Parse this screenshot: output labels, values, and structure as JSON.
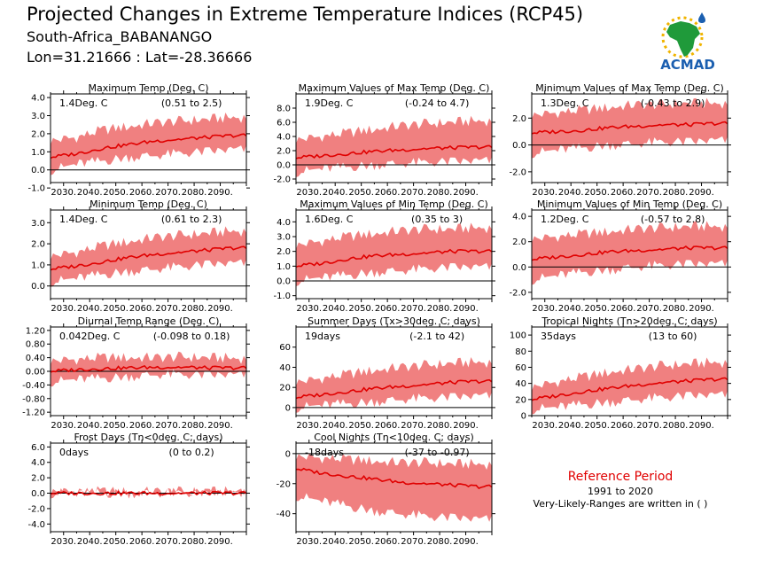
{
  "header": {
    "title": "Projected Changes in Extreme Temperature Indices (RCP45)",
    "location": "South-Africa_BABANANGO",
    "coords": "Lon=31.21666 : Lat=-28.36666"
  },
  "logo": {
    "text": "ACMAD",
    "icon": "africa-map-logo-icon"
  },
  "reference": {
    "title": "Reference Period",
    "years": "1991 to 2020",
    "note": "Very-Likely-Ranges are written in ( )"
  },
  "colors": {
    "band": "#f08080",
    "median": "#e00000",
    "zero_line": "#000000"
  },
  "x_tick_labels": [
    "2030.",
    "2040.",
    "2050.",
    "2060.",
    "2070.",
    "2080.",
    "2090."
  ],
  "chart_data": [
    {
      "type": "area",
      "title": "Maximum Temp (Deg. C)",
      "median_label": "1.4Deg. C",
      "range_label": "(0.51 to 2.5)",
      "x_range": [
        2025,
        2100
      ],
      "ylim": [
        -0.7,
        4.2
      ],
      "yticks": [
        "4.0",
        "3.0",
        "2.0",
        "1.0",
        "0.0",
        "-1.0"
      ],
      "ytick_values": [
        4,
        3,
        2,
        1,
        0,
        -1
      ],
      "series": [
        {
          "x": [
            2025,
            2035,
            2045,
            2055,
            2065,
            2075,
            2085,
            2095,
            2100
          ],
          "median": [
            0.7,
            0.9,
            1.2,
            1.4,
            1.6,
            1.7,
            1.8,
            1.9,
            1.9
          ],
          "low": [
            0.0,
            0.3,
            0.5,
            0.7,
            0.8,
            0.9,
            1.0,
            1.1,
            1.1
          ],
          "high": [
            1.6,
            1.8,
            2.2,
            2.4,
            2.6,
            2.7,
            2.8,
            2.9,
            2.9
          ]
        }
      ]
    },
    {
      "type": "area",
      "title": "Maximum Values of Max Temp (Deg. C)",
      "median_label": "1.9Deg. C",
      "range_label": "(-0.24 to 4.7)",
      "x_range": [
        2025,
        2100
      ],
      "ylim": [
        -2.5,
        10
      ],
      "yticks": [
        "8.0",
        "6.0",
        "4.0",
        "2.0",
        "0.0",
        "-2.0"
      ],
      "ytick_values": [
        8,
        6,
        4,
        2,
        0,
        -2
      ],
      "series": [
        {
          "x": [
            2025,
            2035,
            2045,
            2055,
            2065,
            2075,
            2085,
            2095,
            2100
          ],
          "median": [
            1.0,
            1.3,
            1.6,
            1.9,
            2.1,
            2.3,
            2.4,
            2.5,
            2.5
          ],
          "low": [
            -1.0,
            -0.6,
            -0.3,
            0.0,
            0.2,
            0.3,
            0.4,
            0.5,
            0.5
          ],
          "high": [
            3.5,
            4.0,
            4.5,
            5.0,
            5.5,
            5.8,
            6.0,
            6.2,
            6.2
          ]
        }
      ]
    },
    {
      "type": "area",
      "title": "Minimum Values of Max Temp (Deg. C)",
      "median_label": "1.3Deg. C",
      "range_label": "(-0.43 to 2.9)",
      "x_range": [
        2025,
        2100
      ],
      "ylim": [
        -2.8,
        3.8
      ],
      "yticks": [
        "2.0",
        "0.0",
        "-2.0"
      ],
      "ytick_values": [
        2,
        0,
        -2
      ],
      "series": [
        {
          "x": [
            2025,
            2035,
            2045,
            2055,
            2065,
            2075,
            2085,
            2095,
            2100
          ],
          "median": [
            0.9,
            1.0,
            1.1,
            1.3,
            1.4,
            1.5,
            1.5,
            1.6,
            1.6
          ],
          "low": [
            -0.6,
            -0.4,
            -0.2,
            0.0,
            0.1,
            0.2,
            0.2,
            0.3,
            0.3
          ],
          "high": [
            2.2,
            2.4,
            2.6,
            2.8,
            3.0,
            3.0,
            3.1,
            3.1,
            3.1
          ]
        }
      ]
    },
    {
      "type": "area",
      "title": "Minimum Temp (Deg. C)",
      "median_label": "1.4Deg. C",
      "range_label": "(0.61 to 2.3)",
      "x_range": [
        2025,
        2100
      ],
      "ylim": [
        -0.6,
        3.6
      ],
      "yticks": [
        "3.0",
        "2.0",
        "1.0",
        "0.0"
      ],
      "ytick_values": [
        3,
        2,
        1,
        0
      ],
      "series": [
        {
          "x": [
            2025,
            2035,
            2045,
            2055,
            2065,
            2075,
            2085,
            2095,
            2100
          ],
          "median": [
            0.8,
            0.95,
            1.15,
            1.35,
            1.5,
            1.6,
            1.7,
            1.8,
            1.8
          ],
          "low": [
            0.2,
            0.35,
            0.55,
            0.7,
            0.8,
            0.9,
            1.0,
            1.05,
            1.05
          ],
          "high": [
            1.4,
            1.6,
            1.9,
            2.1,
            2.3,
            2.4,
            2.5,
            2.6,
            2.6
          ]
        }
      ]
    },
    {
      "type": "area",
      "title": "Maximum Values of Min Temp (Deg. C)",
      "median_label": "1.6Deg. C",
      "range_label": "(0.35 to 3)",
      "x_range": [
        2025,
        2100
      ],
      "ylim": [
        -1.2,
        4.8
      ],
      "yticks": [
        "4.0",
        "3.0",
        "2.0",
        "1.0",
        "0.0",
        "-1.0"
      ],
      "ytick_values": [
        4,
        3,
        2,
        1,
        0,
        -1
      ],
      "series": [
        {
          "x": [
            2025,
            2035,
            2045,
            2055,
            2065,
            2075,
            2085,
            2095,
            2100
          ],
          "median": [
            1.0,
            1.2,
            1.5,
            1.7,
            1.8,
            1.9,
            2.0,
            2.0,
            2.0
          ],
          "low": [
            0.0,
            0.2,
            0.4,
            0.6,
            0.7,
            0.8,
            0.9,
            0.9,
            0.9
          ],
          "high": [
            2.4,
            2.7,
            3.0,
            3.2,
            3.4,
            3.5,
            3.5,
            3.6,
            3.6
          ]
        }
      ]
    },
    {
      "type": "area",
      "title": "Minimum Values of Min Temp (Deg. C)",
      "median_label": "1.2Deg. C",
      "range_label": "(-0.57 to 2.8)",
      "x_range": [
        2025,
        2100
      ],
      "ylim": [
        -2.5,
        4.5
      ],
      "yticks": [
        "4.0",
        "2.0",
        "0.0",
        "-2.0"
      ],
      "ytick_values": [
        4,
        2,
        0,
        -2
      ],
      "series": [
        {
          "x": [
            2025,
            2035,
            2045,
            2055,
            2065,
            2075,
            2085,
            2095,
            2100
          ],
          "median": [
            0.6,
            0.8,
            1.0,
            1.2,
            1.3,
            1.4,
            1.5,
            1.5,
            1.5
          ],
          "low": [
            -1.0,
            -0.7,
            -0.4,
            -0.2,
            0.0,
            0.1,
            0.2,
            0.2,
            0.2
          ],
          "high": [
            2.2,
            2.4,
            2.6,
            2.8,
            3.0,
            3.1,
            3.2,
            3.2,
            3.2
          ]
        }
      ]
    },
    {
      "type": "area",
      "title": "Diurnal Temp Range (Deg. C)",
      "median_label": "0.042Deg. C",
      "range_label": "(-0.098 to 0.18)",
      "x_range": [
        2025,
        2100
      ],
      "ylim": [
        -1.3,
        1.3
      ],
      "yticks": [
        "1.20",
        "0.80",
        "0.40",
        "0.00",
        "-0.40",
        "-0.80",
        "-1.20"
      ],
      "ytick_values": [
        1.2,
        0.8,
        0.4,
        0,
        -0.4,
        -0.8,
        -1.2
      ],
      "series": [
        {
          "x": [
            2025,
            2035,
            2045,
            2055,
            2065,
            2075,
            2085,
            2095,
            2100
          ],
          "median": [
            0.0,
            0.05,
            0.08,
            0.1,
            0.12,
            0.12,
            0.1,
            0.1,
            0.1
          ],
          "low": [
            -0.3,
            -0.25,
            -0.2,
            -0.15,
            -0.1,
            -0.1,
            -0.12,
            -0.12,
            -0.12
          ],
          "high": [
            0.3,
            0.35,
            0.4,
            0.4,
            0.4,
            0.42,
            0.4,
            0.38,
            0.38
          ]
        }
      ]
    },
    {
      "type": "area",
      "title": "Summer Days (Tx>30deg. C; days)",
      "median_label": "19days",
      "range_label": "(-2.1 to 42)",
      "x_range": [
        2025,
        2100
      ],
      "ylim": [
        -8,
        80
      ],
      "yticks": [
        "60",
        "40",
        "20",
        "0"
      ],
      "ytick_values": [
        60,
        40,
        20,
        0
      ],
      "series": [
        {
          "x": [
            2025,
            2035,
            2045,
            2055,
            2065,
            2075,
            2085,
            2095,
            2100
          ],
          "median": [
            10,
            13,
            16,
            19,
            21,
            23,
            25,
            26,
            26
          ],
          "low": [
            0,
            2,
            4,
            6,
            8,
            9,
            10,
            11,
            11
          ],
          "high": [
            25,
            29,
            33,
            37,
            40,
            42,
            44,
            45,
            45
          ]
        }
      ]
    },
    {
      "type": "area",
      "title": "Tropical Nights (Tn>20deg. C; days)",
      "median_label": "35days",
      "range_label": "(13 to 60)",
      "x_range": [
        2025,
        2100
      ],
      "ylim": [
        0,
        110
      ],
      "yticks": [
        "100",
        "80",
        "60",
        "40",
        "20",
        "0"
      ],
      "ytick_values": [
        100,
        80,
        60,
        40,
        20,
        0
      ],
      "series": [
        {
          "x": [
            2025,
            2035,
            2045,
            2055,
            2065,
            2075,
            2085,
            2095,
            2100
          ],
          "median": [
            20,
            25,
            30,
            34,
            38,
            41,
            43,
            45,
            45
          ],
          "low": [
            8,
            10,
            14,
            17,
            20,
            22,
            24,
            25,
            25
          ],
          "high": [
            35,
            42,
            48,
            54,
            58,
            62,
            64,
            66,
            66
          ]
        }
      ]
    },
    {
      "type": "area",
      "title": "Frost Days (Tn<0deg. C; days)",
      "median_label": "0days",
      "range_label": "(0 to 0.2)",
      "x_range": [
        2025,
        2100
      ],
      "ylim": [
        -5,
        6.5
      ],
      "yticks": [
        "6.0",
        "4.0",
        "2.0",
        "0.0",
        "-2.0",
        "-4.0"
      ],
      "ytick_values": [
        6,
        4,
        2,
        0,
        -2,
        -4
      ],
      "series": [
        {
          "x": [
            2025,
            2035,
            2045,
            2055,
            2065,
            2075,
            2085,
            2095,
            2100
          ],
          "median": [
            0,
            0,
            0,
            0,
            0,
            0,
            0,
            0,
            0
          ],
          "low": [
            0,
            0,
            0,
            0,
            0,
            0,
            0,
            0,
            0
          ],
          "high": [
            0.2,
            0.2,
            0.2,
            0.2,
            0.2,
            0.2,
            0.2,
            0.2,
            0.2
          ]
        }
      ]
    },
    {
      "type": "area",
      "title": "Cool Nights (Tn<10deg. C; days)",
      "median_label": "-18days",
      "range_label": "(-37 to -0.97)",
      "x_range": [
        2025,
        2100
      ],
      "ylim": [
        -52,
        7
      ],
      "yticks": [
        "0",
        "-20",
        "-40"
      ],
      "ytick_values": [
        0,
        -20,
        -40
      ],
      "series": [
        {
          "x": [
            2025,
            2035,
            2045,
            2055,
            2065,
            2075,
            2085,
            2095,
            2100
          ],
          "median": [
            -10,
            -13,
            -15,
            -17,
            -19,
            -20,
            -21,
            -22,
            -22
          ],
          "low": [
            -28,
            -32,
            -35,
            -38,
            -40,
            -42,
            -43,
            -44,
            -44
          ],
          "high": [
            -2,
            -3,
            -4,
            -5,
            -6,
            -6,
            -7,
            -7,
            -7
          ]
        }
      ]
    }
  ]
}
